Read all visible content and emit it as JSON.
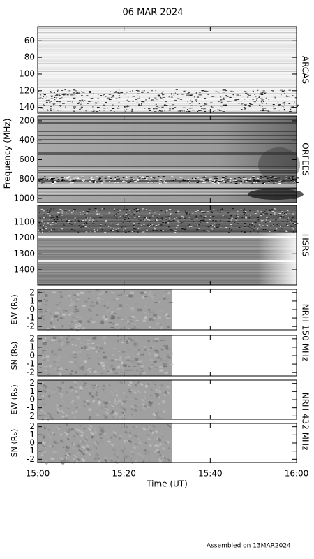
{
  "title": "06 MAR 2024",
  "y_axis_label": "Frequency (MHz)",
  "footer": "Assembled on 13MAR2024",
  "chart_data": [
    {
      "type": "spectrogram",
      "name": "ARCAS",
      "ylim": [
        43,
        147
      ],
      "y_inverted": true,
      "yticks": [
        60,
        80,
        100,
        120,
        140
      ],
      "xlim": [
        0,
        60
      ]
    },
    {
      "type": "spectrogram",
      "name": "ORFEES",
      "ylim": [
        150,
        1043
      ],
      "y_inverted": true,
      "yticks": [
        200,
        400,
        600,
        800,
        1000
      ],
      "xlim": [
        0,
        60
      ]
    },
    {
      "type": "spectrogram",
      "name": "HSRS",
      "ylim": [
        995,
        1497
      ],
      "y_inverted": true,
      "yticks": [
        1100,
        1200,
        1300,
        1400
      ],
      "xlim": [
        0,
        60
      ]
    },
    {
      "type": "image",
      "ylabel": "EW (Rs)",
      "group_label": "NRH 150 MHz",
      "ylim": [
        -2.4,
        2.4
      ],
      "yticks": [
        2,
        1,
        0,
        -1,
        -2
      ],
      "xlim": [
        0,
        60
      ],
      "data_x": [
        0,
        31.2
      ]
    },
    {
      "type": "image",
      "ylabel": "SN (Rs)",
      "ylim": [
        -2.4,
        2.4
      ],
      "yticks": [
        2,
        1,
        0,
        -1,
        -2
      ],
      "xlim": [
        0,
        60
      ],
      "data_x": [
        0,
        31.2
      ]
    },
    {
      "type": "image",
      "ylabel": "EW (Rs)",
      "group_label": "NRH 432 MHz",
      "ylim": [
        -2.4,
        2.4
      ],
      "yticks": [
        2,
        1,
        0,
        -1,
        -2
      ],
      "xlim": [
        0,
        60
      ],
      "data_x": [
        0,
        31.2
      ]
    },
    {
      "type": "image",
      "ylabel": "SN (Rs)",
      "ylim": [
        -2.4,
        2.4
      ],
      "yticks": [
        2,
        1,
        0,
        -1,
        -2
      ],
      "xlim": [
        0,
        60
      ],
      "data_x": [
        0,
        31.2
      ],
      "xlabel": "Time (UT)",
      "xticks": [
        {
          "value": 0,
          "label": "15:00"
        },
        {
          "value": 20,
          "label": "15:20"
        },
        {
          "value": 40,
          "label": "15:40"
        },
        {
          "value": 60,
          "label": "16:00"
        }
      ]
    }
  ]
}
